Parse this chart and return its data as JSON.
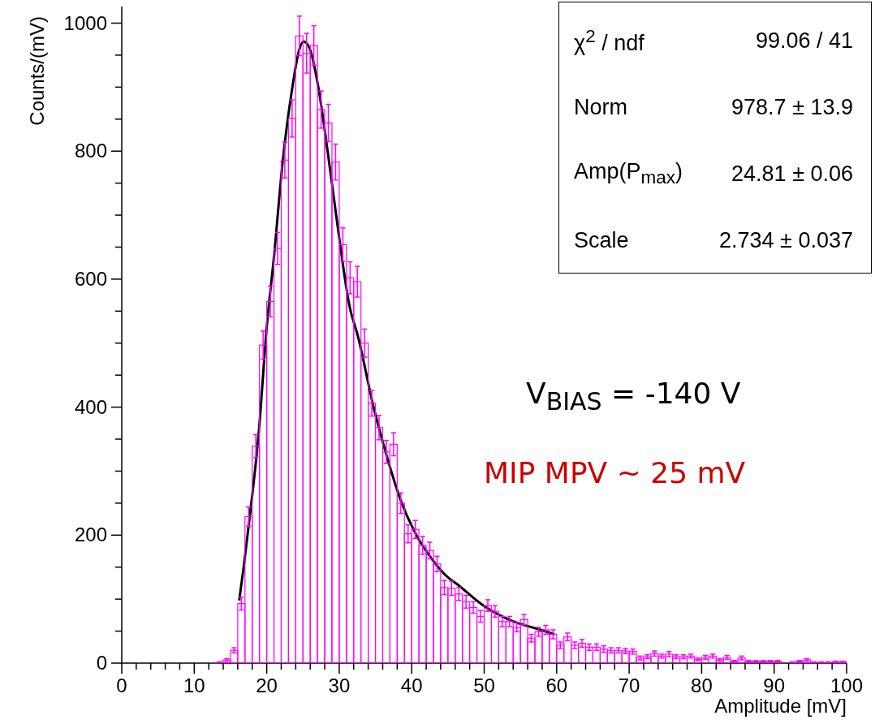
{
  "chart_data": {
    "type": "histogram",
    "xlabel": "Amplitude [mV]",
    "ylabel": "Counts/(mV)",
    "bins": [
      0,
      1,
      2,
      3,
      4,
      5,
      6,
      7,
      8,
      9,
      10,
      11,
      12,
      13,
      14,
      15,
      16,
      17,
      18,
      19,
      20,
      21,
      22,
      23,
      24,
      25,
      26,
      27,
      28,
      29,
      30,
      31,
      32,
      33,
      34,
      35,
      36,
      37,
      38,
      39,
      40,
      41,
      42,
      43,
      44,
      45,
      46,
      47,
      48,
      49,
      50,
      51,
      52,
      53,
      54,
      55,
      56,
      57,
      58,
      59,
      60,
      61,
      62,
      63,
      64,
      65,
      66,
      67,
      68,
      69,
      70,
      71,
      72,
      73,
      74,
      75,
      76,
      77,
      78,
      79,
      80,
      81,
      82,
      83,
      84,
      85,
      86,
      87,
      88,
      89,
      90,
      91,
      92,
      93,
      94,
      95,
      96,
      97,
      98,
      99,
      100
    ],
    "series": [
      {
        "type": "histogram",
        "color": "#ff00ff",
        "values": [
          0,
          0,
          0,
          0,
          0,
          0,
          0,
          0,
          0,
          0,
          0,
          0,
          0,
          1,
          5,
          20,
          93,
          229,
          339,
          497,
          565,
          648,
          786,
          851,
          980,
          953,
          965,
          865,
          844,
          783,
          654,
          602,
          596,
          500,
          406,
          368,
          330,
          342,
          250,
          202,
          209,
          184,
          176,
          155,
          118,
          117,
          108,
          96,
          87,
          73,
          90,
          81,
          65,
          65,
          56,
          68,
          39,
          49,
          52,
          45,
          28,
          41,
          28,
          31,
          25,
          25,
          22,
          20,
          20,
          19,
          18,
          8,
          10,
          15,
          11,
          14,
          10,
          10,
          11,
          6,
          9,
          11,
          5,
          9,
          3,
          8,
          3,
          3,
          3,
          3,
          3,
          0,
          1,
          3,
          5,
          1,
          1,
          1,
          2,
          2
        ],
        "errors": [
          null,
          null,
          null,
          null,
          null,
          null,
          null,
          null,
          null,
          null,
          null,
          null,
          null,
          1,
          2,
          4,
          10,
          15,
          18,
          22,
          24,
          25,
          28,
          29,
          31,
          31,
          31,
          29,
          29,
          28,
          26,
          25,
          24,
          22,
          20,
          19,
          18,
          18,
          16,
          14,
          14,
          14,
          13,
          12,
          11,
          11,
          10,
          10,
          9,
          9,
          9,
          9,
          8,
          8,
          7,
          8,
          6,
          7,
          7,
          7,
          5,
          6,
          5,
          6,
          5,
          5,
          5,
          4,
          4,
          4,
          4,
          3,
          3,
          4,
          3,
          4,
          3,
          3,
          3,
          2,
          3,
          3,
          2,
          3,
          1,
          3,
          1,
          1,
          1,
          1,
          1,
          null,
          1,
          1,
          2,
          1,
          1,
          1,
          1,
          1
        ]
      },
      {
        "type": "line",
        "color": "#000000",
        "x": [
          16.2,
          16.8,
          17.7,
          18.9,
          20.0,
          21.0,
          22.2,
          23.5,
          24.5,
          25.1,
          25.9,
          27.1,
          28.4,
          29.9,
          31.4,
          32.6,
          34.7,
          36.6,
          38.5,
          40.7,
          42.9,
          44.8,
          46.3,
          50.0,
          53.8,
          57.5,
          59.7
        ],
        "values": [
          98,
          148,
          233,
          360,
          525,
          635,
          783,
          897,
          959,
          971,
          961,
          901,
          800,
          673,
          559,
          510,
          402,
          322,
          254,
          199,
          161,
          136,
          123,
          89,
          66,
          53,
          45
        ]
      }
    ],
    "xlim": [
      0,
      100
    ],
    "ylim": [
      0,
      1026
    ],
    "xticks": [
      0,
      {
        "value": 2,
        "label": null
      },
      {
        "value": 4,
        "label": null
      },
      {
        "value": 6,
        "label": null
      },
      {
        "value": 8,
        "label": null
      },
      10,
      {
        "value": 12,
        "label": null
      },
      {
        "value": 14,
        "label": null
      },
      {
        "value": 16,
        "label": null
      },
      {
        "value": 18,
        "label": null
      },
      20,
      {
        "value": 22,
        "label": null
      },
      {
        "value": 24,
        "label": null
      },
      {
        "value": 26,
        "label": null
      },
      {
        "value": 28,
        "label": null
      },
      30,
      {
        "value": 32,
        "label": null
      },
      {
        "value": 34,
        "label": null
      },
      {
        "value": 36,
        "label": null
      },
      {
        "value": 38,
        "label": null
      },
      40,
      {
        "value": 42,
        "label": null
      },
      {
        "value": 44,
        "label": null
      },
      {
        "value": 46,
        "label": null
      },
      {
        "value": 48,
        "label": null
      },
      50,
      {
        "value": 52,
        "label": null
      },
      {
        "value": 54,
        "label": null
      },
      {
        "value": 56,
        "label": null
      },
      {
        "value": 58,
        "label": null
      },
      60,
      {
        "value": 62,
        "label": null
      },
      {
        "value": 64,
        "label": null
      },
      {
        "value": 66,
        "label": null
      },
      {
        "value": 68,
        "label": null
      },
      70,
      {
        "value": 72,
        "label": null
      },
      {
        "value": 74,
        "label": null
      },
      {
        "value": 76,
        "label": null
      },
      {
        "value": 78,
        "label": null
      },
      80,
      {
        "value": 82,
        "label": null
      },
      {
        "value": 84,
        "label": null
      },
      {
        "value": 86,
        "label": null
      },
      {
        "value": 88,
        "label": null
      },
      90,
      {
        "value": 92,
        "label": null
      },
      {
        "value": 94,
        "label": null
      },
      {
        "value": 96,
        "label": null
      },
      {
        "value": 98,
        "label": null
      },
      100
    ],
    "yticks": [
      0,
      {
        "value": 50,
        "label": null
      },
      {
        "value": 100,
        "label": null
      },
      {
        "value": 150,
        "label": null
      },
      200,
      {
        "value": 250,
        "label": null
      },
      {
        "value": 300,
        "label": null
      },
      {
        "value": 350,
        "label": null
      },
      400,
      {
        "value": 450,
        "label": null
      },
      {
        "value": 500,
        "label": null
      },
      {
        "value": 550,
        "label": null
      },
      600,
      {
        "value": 650,
        "label": null
      },
      {
        "value": 700,
        "label": null
      },
      {
        "value": 750,
        "label": null
      },
      800,
      {
        "value": 850,
        "label": null
      },
      {
        "value": 900,
        "label": null
      },
      {
        "value": 950,
        "label": null
      },
      1000
    ],
    "annotations": [
      "χ$^{2}$ / ndf",
      "99.06 / 41",
      "Norm",
      "978.7 ± 13.9",
      "Amp(P$_{max}$)",
      "24.81 ± 0.06",
      "Scale",
      "2.734 ± 0.037",
      "V$_{BIAS}$ = -140 V",
      "MIP MPV ~ 25 mV"
    ]
  }
}
